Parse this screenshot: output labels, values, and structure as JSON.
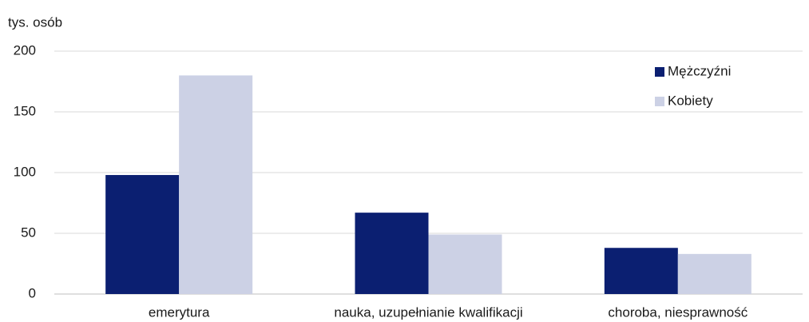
{
  "chart_data": {
    "type": "bar",
    "y_label": "tys. osób",
    "categories": [
      "emerytura",
      "nauka, uzupełnianie kwalifikacji",
      "choroba, niesprawność"
    ],
    "series": [
      {
        "name": "Mężczyźni",
        "color": "#0b1f71",
        "values": [
          98,
          67,
          38
        ]
      },
      {
        "name": "Kobiety",
        "color": "#ccd1e5",
        "values": [
          180,
          49,
          33
        ]
      }
    ],
    "ylim": [
      0,
      200
    ],
    "yticks": [
      0,
      50,
      100,
      150,
      200
    ],
    "grid": true,
    "legend": "upper right"
  }
}
